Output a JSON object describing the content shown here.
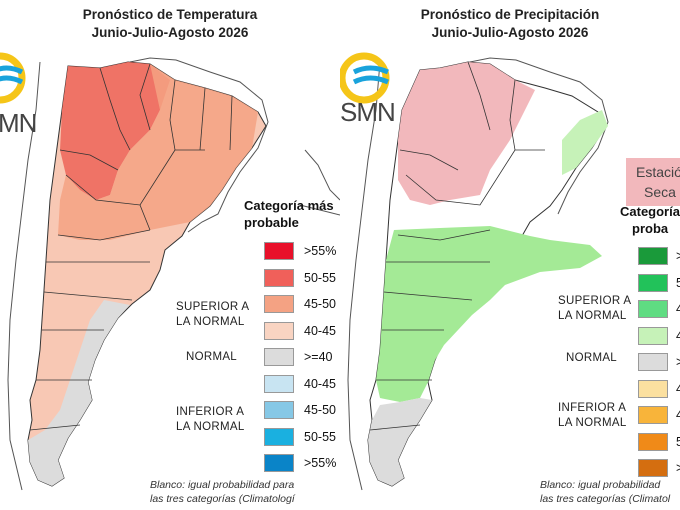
{
  "temperature": {
    "title_line1": "Pronóstico de Temperatura",
    "title_line2": "Junio-Julio-Agosto 2026",
    "logo_text": "MN",
    "legend_title_line1": "Categoría más",
    "legend_title_line2": "probable",
    "superior_label_line1": "SUPERIOR A",
    "superior_label_line2": "LA NORMAL",
    "normal_label": "NORMAL",
    "inferior_label_line1": "INFERIOR A",
    "inferior_label_line2": "LA NORMAL",
    "legend_items": [
      {
        "label": ">55%",
        "color": "#e8102a"
      },
      {
        "label": "50-55",
        "color": "#f0605a"
      },
      {
        "label": "45-50",
        "color": "#f4a283"
      },
      {
        "label": "40-45",
        "color": "#f9d4c2"
      },
      {
        "label": ">=40",
        "color": "#dcdcdc"
      },
      {
        "label": "40-45",
        "color": "#c8e4f2"
      },
      {
        "label": "45-50",
        "color": "#86c8e6"
      },
      {
        "label": "50-55",
        "color": "#1ab0e0"
      },
      {
        "label": ">55%",
        "color": "#0a84c8"
      }
    ],
    "note_line1": "Blanco: igual probabilidad para",
    "note_line2": "las tres categorías (Climatologí"
  },
  "precipitation": {
    "title_line1": "Pronóstico de Precipitación",
    "title_line2": "Junio-Julio-Agosto 2026",
    "logo_text": "SMN",
    "dry_line1": "Estació",
    "dry_line2": "Seca",
    "legend_title_line1": "Categoría",
    "legend_title_line2": "proba",
    "superior_label_line1": "SUPERIOR A",
    "superior_label_line2": "LA NORMAL",
    "normal_label": "NORMAL",
    "inferior_label_line1": "INFERIOR A",
    "inferior_label_line2": "LA NORMAL",
    "legend_items": [
      {
        "label": ">",
        "color": "#1a9a3a"
      },
      {
        "label": "5",
        "color": "#22c25a"
      },
      {
        "label": "4",
        "color": "#5fdc82"
      },
      {
        "label": "4",
        "color": "#c6f2b8"
      },
      {
        "label": ">",
        "color": "#dcdcdc"
      },
      {
        "label": "4",
        "color": "#fbe0a0"
      },
      {
        "label": "4",
        "color": "#f8b43a"
      },
      {
        "label": "5",
        "color": "#f08a18"
      },
      {
        "label": ">",
        "color": "#d46e10"
      }
    ],
    "note_line1": "Blanco: igual probabilidad",
    "note_line2": "las tres categorías (Climatol"
  },
  "colors": {
    "temp_dark": "#e8504a",
    "temp_mid": "#f28d74",
    "temp_light": "#f8c8b4",
    "temp_pale": "#fbdfd2",
    "normal_gray": "#dcdcdc",
    "prec_light_green": "#c6f2b8",
    "prec_green": "#a4ea96",
    "dry_pink": "#f2b8bc",
    "logo_yellow": "#f5c518",
    "logo_blue": "#19a3dc"
  }
}
